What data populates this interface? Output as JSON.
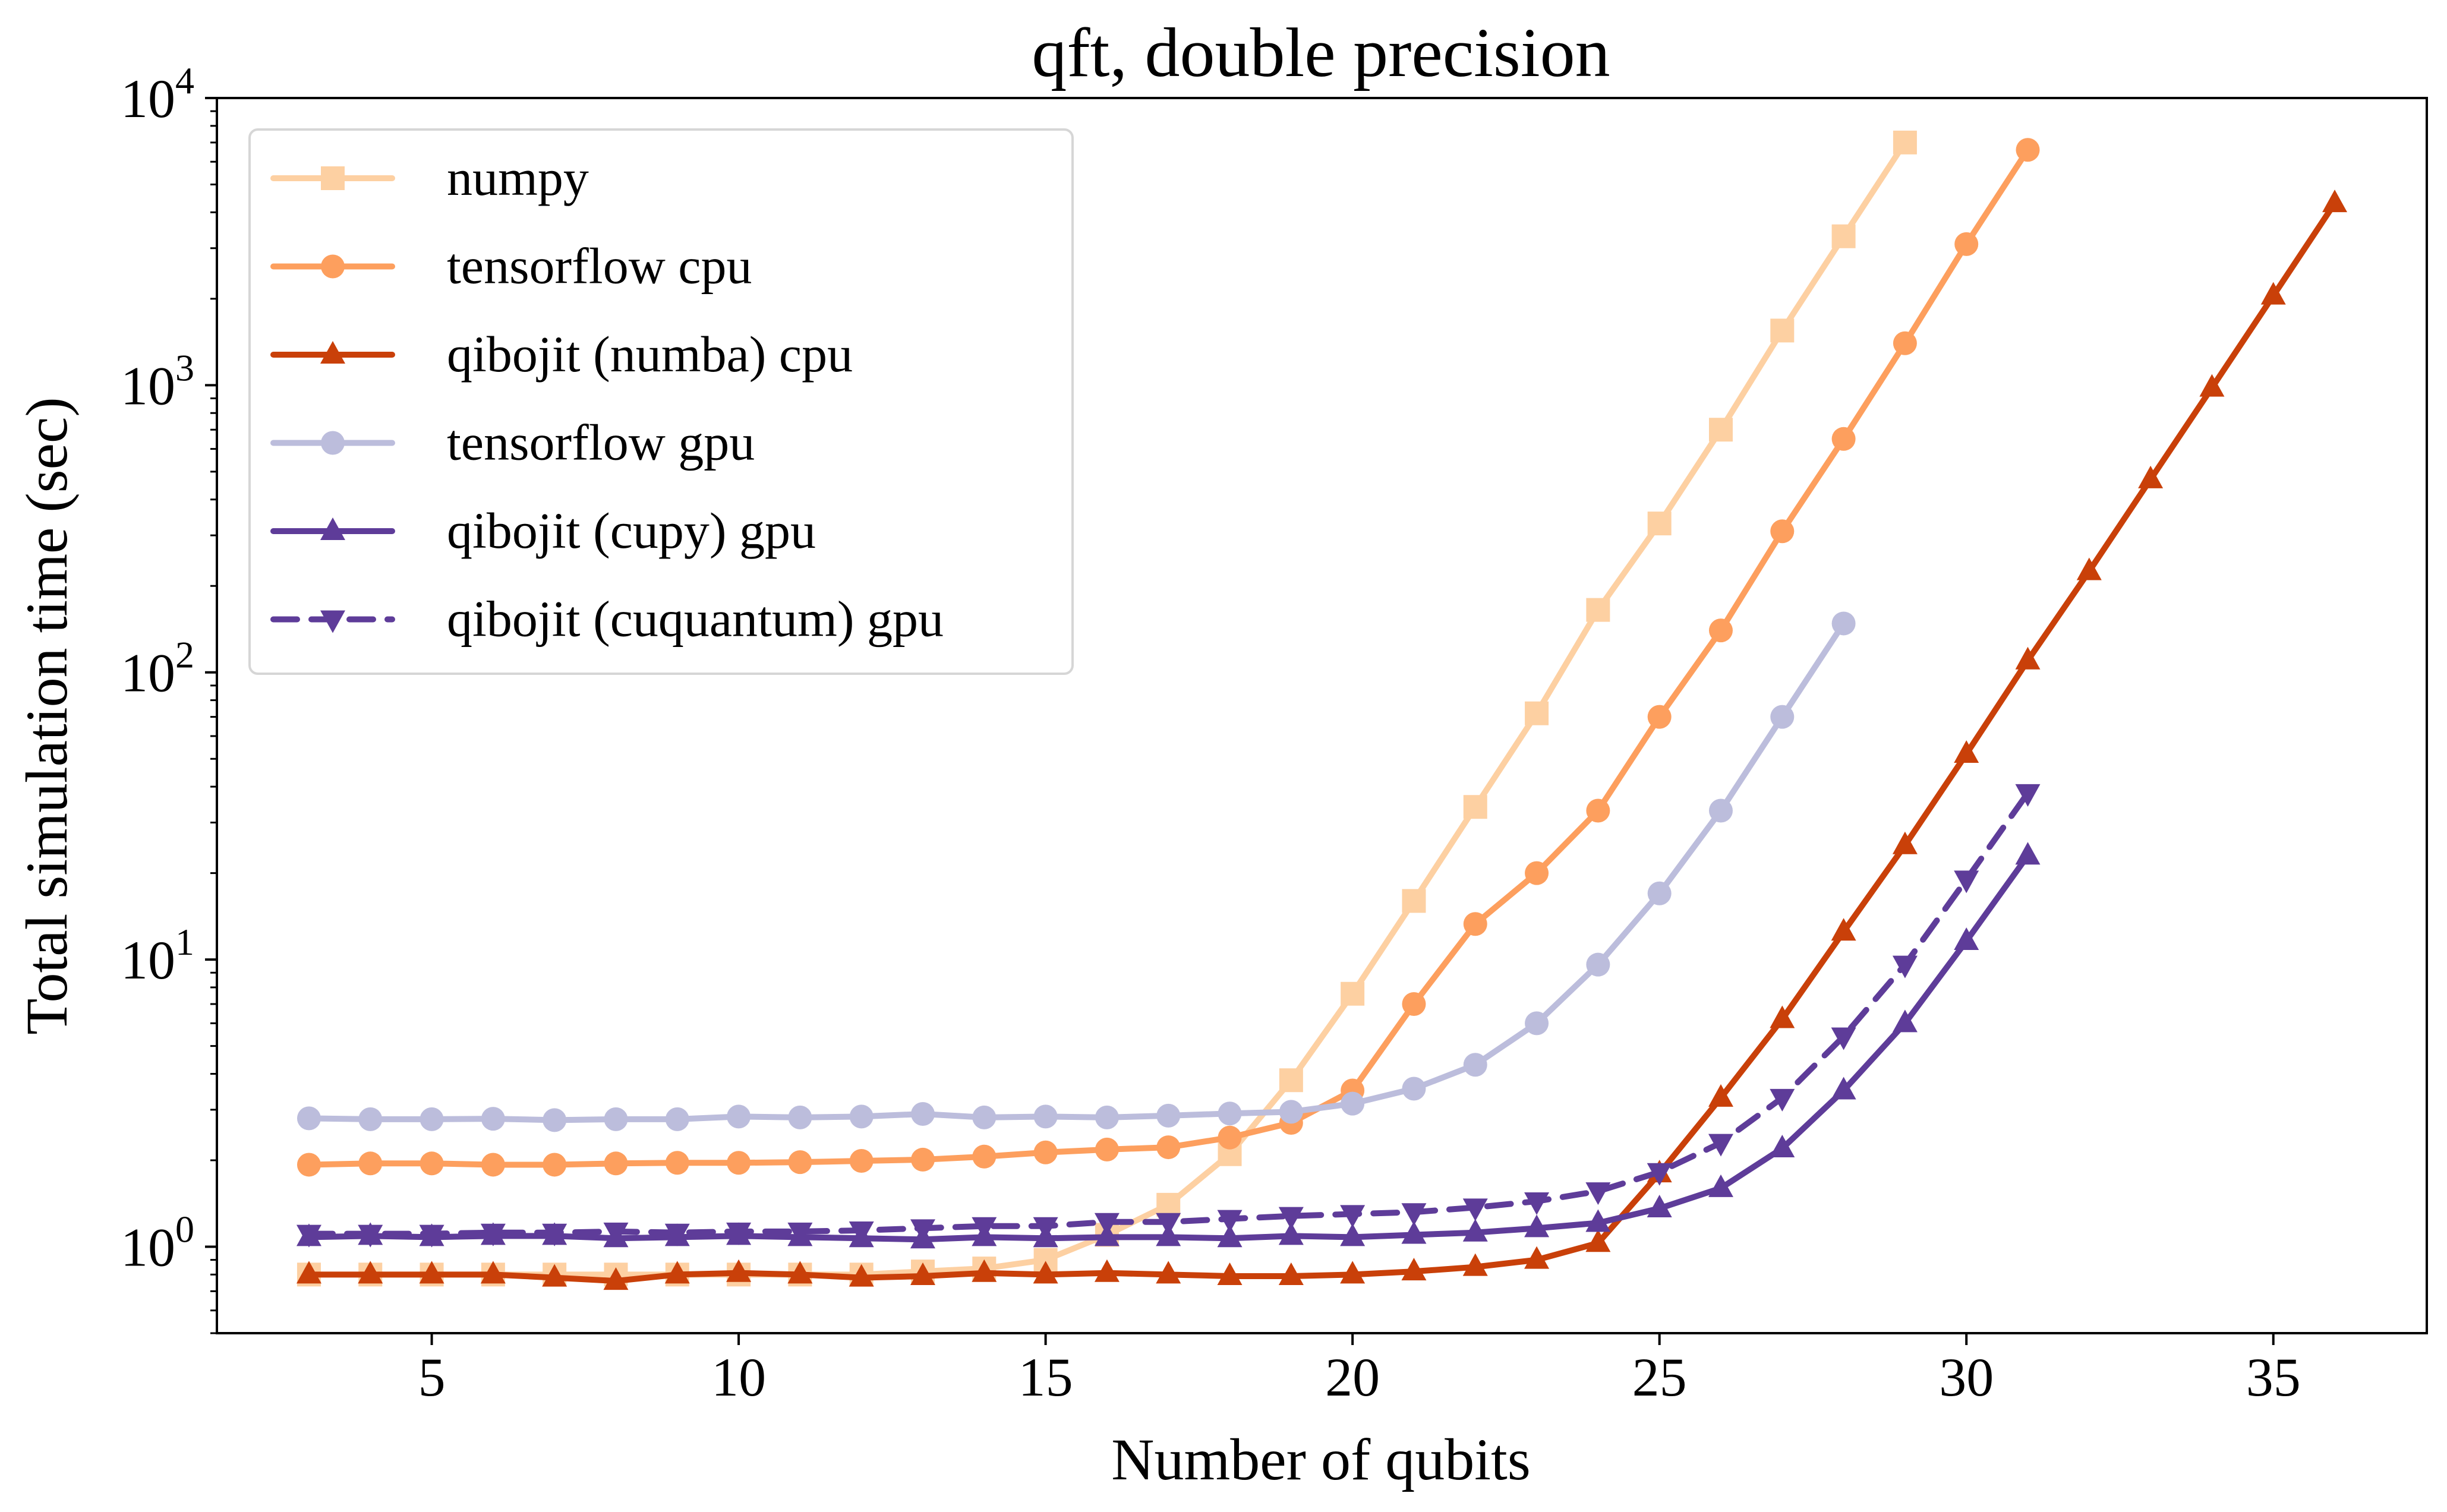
{
  "chart_data": {
    "type": "line",
    "title": "qft, double precision",
    "xlabel": "Number of qubits",
    "ylabel": "Total simulation time (sec)",
    "xlim": [
      1.5,
      37.5
    ],
    "ylim": [
      0.5,
      10000
    ],
    "yscale": "log",
    "xticks": [
      5,
      10,
      15,
      20,
      25,
      30,
      35
    ],
    "yticks": [
      {
        "value": 1,
        "base": "10",
        "exp": "0"
      },
      {
        "value": 10,
        "base": "10",
        "exp": "1"
      },
      {
        "value": 100,
        "base": "10",
        "exp": "2"
      },
      {
        "value": 1000,
        "base": "10",
        "exp": "3"
      },
      {
        "value": 10000,
        "base": "10",
        "exp": "4"
      }
    ],
    "grid": false,
    "legend_position": "top-left",
    "series": [
      {
        "name": "numpy",
        "color": "#fdd0a2",
        "marker": "square",
        "dash": "solid",
        "x": [
          3,
          4,
          5,
          6,
          7,
          8,
          9,
          10,
          11,
          12,
          13,
          14,
          15,
          16,
          17,
          18,
          19,
          20,
          21,
          22,
          23,
          24,
          25,
          26,
          27,
          28,
          29
        ],
        "y": [
          0.8,
          0.8,
          0.8,
          0.8,
          0.8,
          0.8,
          0.8,
          0.8,
          0.8,
          0.8,
          0.82,
          0.84,
          0.9,
          1.1,
          1.4,
          2.1,
          3.8,
          7.6,
          16,
          34,
          72,
          165,
          330,
          700,
          1550,
          3300,
          7000
        ]
      },
      {
        "name": "tensorflow cpu",
        "color": "#fd9f5e",
        "marker": "circle",
        "dash": "solid",
        "x": [
          3,
          4,
          5,
          6,
          7,
          8,
          9,
          10,
          11,
          12,
          13,
          14,
          15,
          16,
          17,
          18,
          19,
          20,
          21,
          22,
          23,
          24,
          25,
          26,
          27,
          28,
          29,
          30,
          31
        ],
        "y": [
          1.93,
          1.95,
          1.95,
          1.93,
          1.93,
          1.95,
          1.96,
          1.96,
          1.97,
          1.99,
          2.01,
          2.06,
          2.13,
          2.18,
          2.22,
          2.4,
          2.7,
          3.5,
          7.0,
          13.3,
          20,
          33,
          70,
          140,
          310,
          650,
          1400,
          3100,
          6600
        ]
      },
      {
        "name": "qibojit (numba) cpu",
        "color": "#c94009",
        "marker": "triangle-up",
        "dash": "solid",
        "x": [
          3,
          4,
          5,
          6,
          7,
          8,
          9,
          10,
          11,
          12,
          13,
          14,
          15,
          16,
          17,
          18,
          19,
          20,
          21,
          22,
          23,
          24,
          25,
          26,
          27,
          28,
          29,
          30,
          31,
          32,
          33,
          34,
          35,
          36
        ],
        "y": [
          0.8,
          0.8,
          0.8,
          0.8,
          0.78,
          0.76,
          0.8,
          0.81,
          0.8,
          0.78,
          0.79,
          0.81,
          0.8,
          0.81,
          0.8,
          0.79,
          0.79,
          0.8,
          0.82,
          0.85,
          0.9,
          1.03,
          1.8,
          3.3,
          6.2,
          12.5,
          25,
          52,
          110,
          225,
          470,
          980,
          2050,
          4300
        ]
      },
      {
        "name": "tensorflow gpu",
        "color": "#bcbddc",
        "marker": "circle",
        "dash": "solid",
        "x": [
          3,
          4,
          5,
          6,
          7,
          8,
          9,
          10,
          11,
          12,
          13,
          14,
          15,
          16,
          17,
          18,
          19,
          20,
          21,
          22,
          23,
          24,
          25,
          26,
          27,
          28
        ],
        "y": [
          2.8,
          2.78,
          2.78,
          2.79,
          2.76,
          2.78,
          2.78,
          2.84,
          2.82,
          2.84,
          2.9,
          2.82,
          2.84,
          2.82,
          2.86,
          2.91,
          2.95,
          3.15,
          3.55,
          4.3,
          6.0,
          9.6,
          17,
          33,
          70,
          148
        ]
      },
      {
        "name": "qibojit (cupy) gpu",
        "color": "#5e3c99",
        "marker": "triangle-up",
        "dash": "solid",
        "x": [
          3,
          4,
          5,
          6,
          7,
          8,
          9,
          10,
          11,
          12,
          13,
          14,
          15,
          16,
          17,
          18,
          19,
          20,
          21,
          22,
          23,
          24,
          25,
          26,
          27,
          28,
          29,
          30,
          31
        ],
        "y": [
          1.08,
          1.09,
          1.08,
          1.09,
          1.09,
          1.07,
          1.08,
          1.09,
          1.08,
          1.07,
          1.06,
          1.08,
          1.07,
          1.08,
          1.08,
          1.07,
          1.09,
          1.08,
          1.1,
          1.12,
          1.16,
          1.21,
          1.36,
          1.6,
          2.2,
          3.5,
          6.0,
          11.6,
          23
        ]
      },
      {
        "name": "qibojit (cuquantum) gpu",
        "color": "#5e3c99",
        "marker": "triangle-down",
        "dash": "dashed",
        "x": [
          3,
          4,
          5,
          6,
          7,
          8,
          9,
          10,
          11,
          12,
          13,
          14,
          15,
          16,
          17,
          18,
          19,
          20,
          21,
          22,
          23,
          24,
          25,
          26,
          27,
          28,
          29,
          30,
          31
        ],
        "y": [
          1.11,
          1.11,
          1.11,
          1.12,
          1.12,
          1.13,
          1.12,
          1.13,
          1.13,
          1.14,
          1.16,
          1.18,
          1.18,
          1.22,
          1.22,
          1.25,
          1.28,
          1.3,
          1.32,
          1.37,
          1.44,
          1.56,
          1.82,
          2.3,
          3.3,
          5.4,
          9.6,
          19,
          38
        ]
      }
    ]
  }
}
